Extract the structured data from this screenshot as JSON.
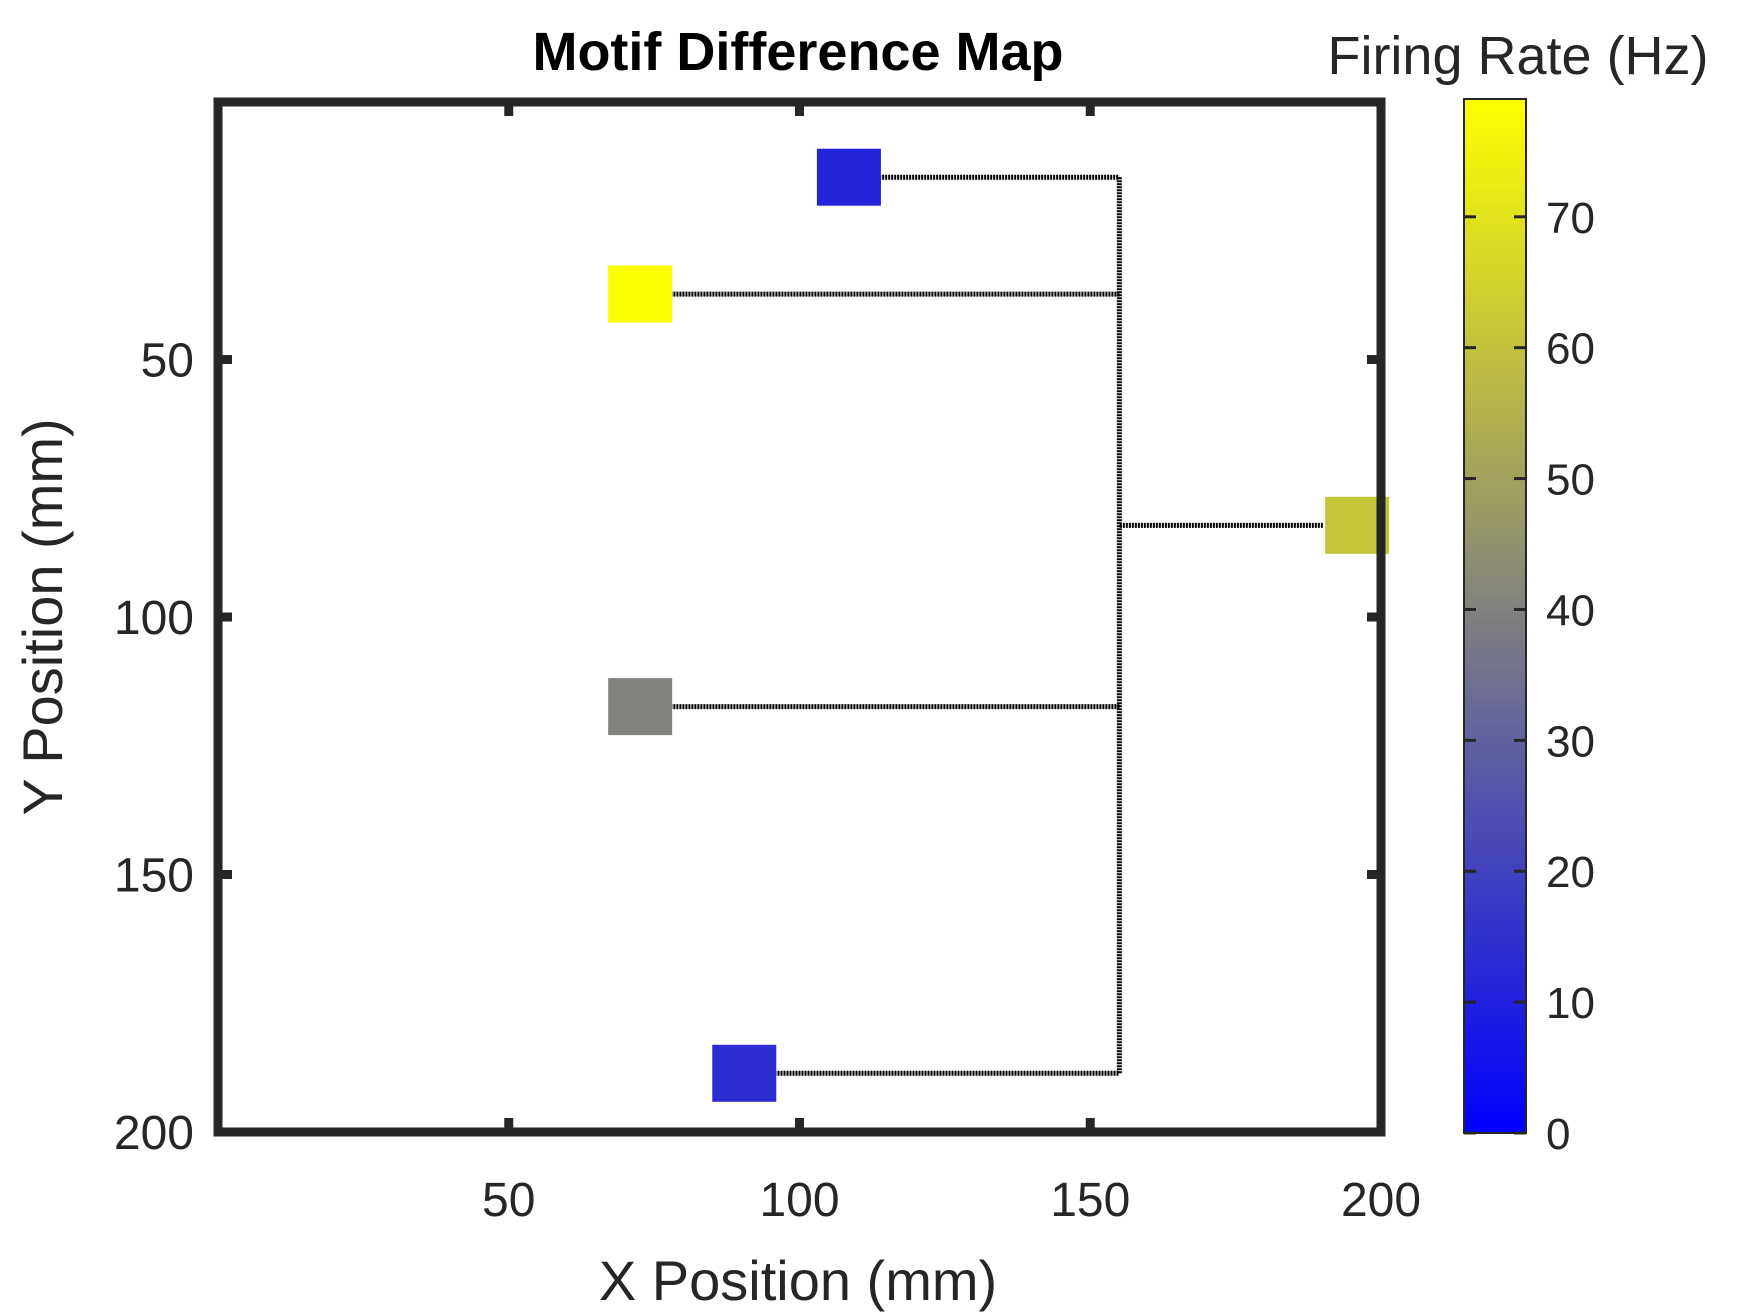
{
  "chart_data": {
    "type": "scatter",
    "title": "Motif Difference Map",
    "xlabel": "X Position (mm)",
    "ylabel": "Y Position (mm)",
    "xlim": [
      0,
      200
    ],
    "ylim": [
      0,
      200
    ],
    "y_reversed": true,
    "xticks": [
      50,
      100,
      150,
      200
    ],
    "yticks": [
      50,
      100,
      150,
      200
    ],
    "grid": false,
    "points": [
      {
        "x": 108.5,
        "y": 14.6,
        "firing_rate": 11
      },
      {
        "x": 72.6,
        "y": 37.3,
        "firing_rate": 78
      },
      {
        "x": 195.9,
        "y": 82.2,
        "firing_rate": 61
      },
      {
        "x": 72.6,
        "y": 117.4,
        "firing_rate": 40
      },
      {
        "x": 90.5,
        "y": 188.6,
        "firing_rate": 14
      }
    ],
    "connections": {
      "trunk_x": 155,
      "links": [
        {
          "from_x": 113.7,
          "y": 14.6
        },
        {
          "from_x": 77.8,
          "y": 37.3
        },
        {
          "from_x": 190.0,
          "y": 82.2
        },
        {
          "from_x": 77.8,
          "y": 117.4
        },
        {
          "from_x": 95.7,
          "y": 188.6
        }
      ]
    },
    "colorbar": {
      "label": "Firing Rate (Hz)",
      "min": 0,
      "max": 79,
      "ticks": [
        0,
        10,
        20,
        30,
        40,
        50,
        60,
        70
      ],
      "colors": [
        "#0000ff",
        "#808080",
        "#ffff00"
      ]
    }
  }
}
